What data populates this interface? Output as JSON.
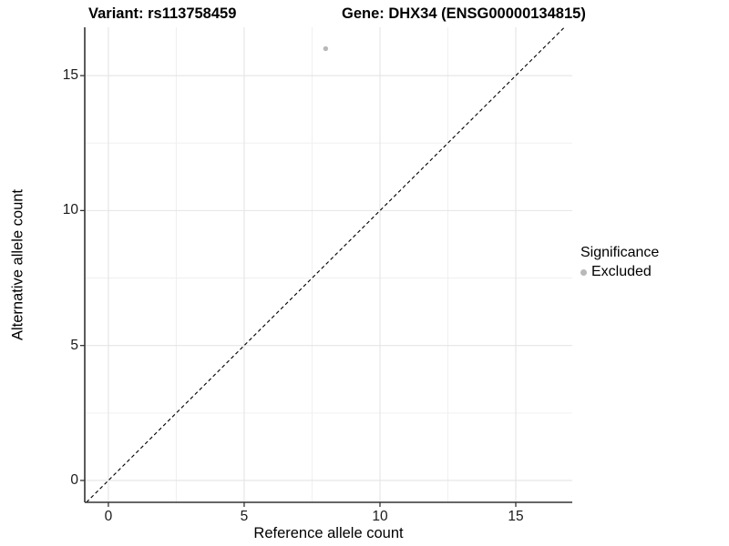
{
  "header": {
    "title_left": "Variant: rs113758459",
    "title_right": "Gene: DHX34 (ENSG00000134815)"
  },
  "chart_data": {
    "type": "scatter",
    "title_left": "Variant: rs113758459",
    "title_right": "Gene: DHX34 (ENSG00000134815)",
    "xlabel": "Reference allele count",
    "ylabel": "Alternative allele count",
    "xlim": [
      -0.87,
      17.08
    ],
    "ylim": [
      -0.81,
      16.79
    ],
    "x_ticks": [
      0,
      5,
      10,
      15
    ],
    "y_ticks": [
      0,
      5,
      10,
      15
    ],
    "x_minor_ticks": [
      2.5,
      7.5,
      12.5
    ],
    "y_minor_ticks": [
      2.5,
      7.5,
      12.5
    ],
    "grid": true,
    "points": [
      {
        "x": 8,
        "y": 16,
        "series": "Excluded"
      }
    ],
    "identity_line": {
      "slope": 1,
      "intercept": 0,
      "linetype": "dashed"
    },
    "legend": {
      "title": "Significance",
      "position": "right",
      "entries": [
        {
          "label": "Excluded",
          "color": "#b9b9b9"
        }
      ]
    },
    "colors": {
      "point": "#b9b9b9",
      "grid_major": "#e4e4e4",
      "grid_minor": "#f0f0f0",
      "axis_line": "#333333",
      "identity_line": "#000000",
      "text": "#1a1a1a"
    }
  }
}
